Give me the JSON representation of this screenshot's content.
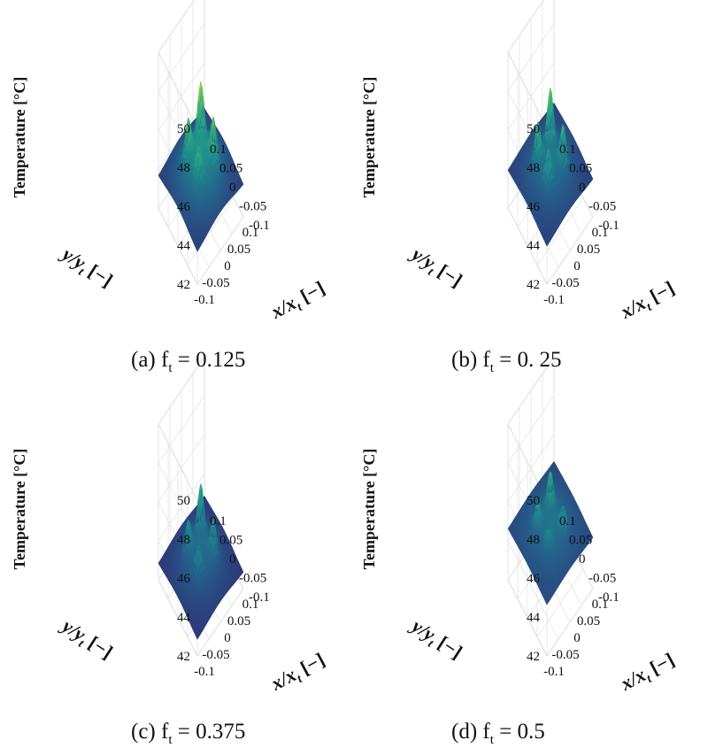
{
  "chart_data": [
    {
      "type": "surface3d",
      "caption_prefix": "(a) f",
      "caption_sub": "t",
      "caption_value": "= 0.125",
      "zlabel": "Temperature [°C]",
      "xlabel": "x/x",
      "xlabel_sub": "t",
      "xlabel_unit": " [−]",
      "ylabel": "y/y",
      "ylabel_sub": "t",
      "ylabel_unit": " [−]",
      "zlim": [
        42,
        50
      ],
      "z_ticks": [
        "42",
        "44",
        "46",
        "48",
        "50"
      ],
      "x_ticks": [
        "-0.1",
        "-0.05",
        "0",
        "0.05",
        "0.1"
      ],
      "y_ticks": [
        "-0.1",
        "-0.05",
        "0",
        "0.05",
        "0.1"
      ],
      "base_temp": 43.6,
      "center_temp": 45.6,
      "peaks": [
        {
          "x": -0.03,
          "y": 0.03,
          "temp": 47.3
        },
        {
          "x": 0.025,
          "y": 0.03,
          "temp": 48.2
        },
        {
          "x": -0.03,
          "y": -0.025,
          "temp": 46.8
        },
        {
          "x": 0.03,
          "y": -0.03,
          "temp": 47.5
        }
      ]
    },
    {
      "type": "surface3d",
      "caption_prefix": "(b) f",
      "caption_sub": "t",
      "caption_value": "= 0. 25",
      "zlabel": "Temperature [°C]",
      "xlabel": "x/x",
      "xlabel_sub": "t",
      "xlabel_unit": " [−]",
      "ylabel": "y/y",
      "ylabel_sub": "t",
      "ylabel_unit": " [−]",
      "zlim": [
        42,
        50
      ],
      "z_ticks": [
        "42",
        "44",
        "46",
        "48",
        "50"
      ],
      "x_ticks": [
        "-0.1",
        "-0.05",
        "0",
        "0.05",
        "0.1"
      ],
      "y_ticks": [
        "-0.1",
        "-0.05",
        "0",
        "0.05",
        "0.1"
      ],
      "base_temp": 43.9,
      "center_temp": 45.1,
      "peaks": [
        {
          "x": -0.03,
          "y": 0.03,
          "temp": 46.9
        },
        {
          "x": 0.025,
          "y": 0.03,
          "temp": 47.7
        },
        {
          "x": -0.03,
          "y": -0.025,
          "temp": 46.5
        },
        {
          "x": 0.03,
          "y": -0.03,
          "temp": 46.9
        }
      ]
    },
    {
      "type": "surface3d",
      "caption_prefix": "(c) f",
      "caption_sub": "t",
      "caption_value": "= 0.375",
      "zlabel": "Temperature [°C]",
      "xlabel": "x/x",
      "xlabel_sub": "t",
      "xlabel_unit": " [−]",
      "ylabel": "y/y",
      "ylabel_sub": "t",
      "ylabel_unit": " [−]",
      "zlim": [
        42,
        50
      ],
      "z_ticks": [
        "42",
        "44",
        "46",
        "48",
        "50"
      ],
      "x_ticks": [
        "-0.1",
        "-0.05",
        "0",
        "0.05",
        "0.1"
      ],
      "y_ticks": [
        "-0.1",
        "-0.05",
        "0",
        "0.05",
        "0.1"
      ],
      "base_temp": 42.8,
      "center_temp": 44.2,
      "peaks": [
        {
          "x": -0.03,
          "y": 0.03,
          "temp": 45.6
        },
        {
          "x": 0.025,
          "y": 0.03,
          "temp": 46.5
        },
        {
          "x": -0.03,
          "y": -0.025,
          "temp": 45.3
        },
        {
          "x": 0.03,
          "y": -0.03,
          "temp": 45.8
        }
      ]
    },
    {
      "type": "surface3d",
      "caption_prefix": "(d) f",
      "caption_sub": "t",
      "caption_value": "= 0.5",
      "zlabel": "Temperature [°C]",
      "xlabel": "x/x",
      "xlabel_sub": "t",
      "xlabel_unit": " [−]",
      "ylabel": "y/y",
      "ylabel_sub": "t",
      "ylabel_unit": " [−]",
      "zlim": [
        42,
        50
      ],
      "z_ticks": [
        "42",
        "44",
        "46",
        "48",
        "50"
      ],
      "x_ticks": [
        "-0.1",
        "-0.05",
        "0",
        "0.05",
        "0.1"
      ],
      "y_ticks": [
        "-0.1",
        "-0.05",
        "0",
        "0.05",
        "0.1"
      ],
      "base_temp": 44.6,
      "center_temp": 45.4,
      "peaks": [
        {
          "x": -0.03,
          "y": 0.03,
          "temp": 46.4
        },
        {
          "x": 0.025,
          "y": 0.03,
          "temp": 47.0
        },
        {
          "x": -0.03,
          "y": -0.025,
          "temp": 46.0
        },
        {
          "x": 0.03,
          "y": -0.03,
          "temp": 46.3
        }
      ]
    }
  ]
}
